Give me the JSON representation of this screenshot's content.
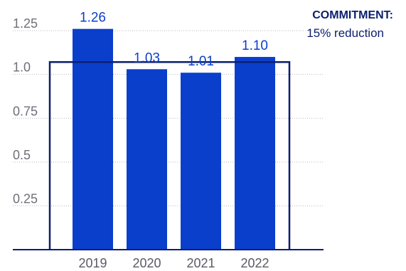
{
  "chart_data": {
    "type": "bar",
    "categories": [
      "2019",
      "2020",
      "2021",
      "2022"
    ],
    "values": [
      1.26,
      1.03,
      1.01,
      1.1
    ],
    "value_labels": [
      "1.26",
      "1.03",
      "1.01",
      "1.10"
    ],
    "yticks": [
      0.25,
      0.5,
      0.75,
      1.0,
      1.25
    ],
    "ytick_labels": [
      "0.25",
      "0.5",
      "0.75",
      "1.0",
      "1.25"
    ],
    "ylim": [
      0,
      1.36
    ],
    "grid": true,
    "bar_color": "#0a3fcc",
    "target": {
      "value": 1.071,
      "color": "#0a1f6e",
      "title": "COMMITMENT:",
      "subtitle": "15% reduction"
    }
  }
}
